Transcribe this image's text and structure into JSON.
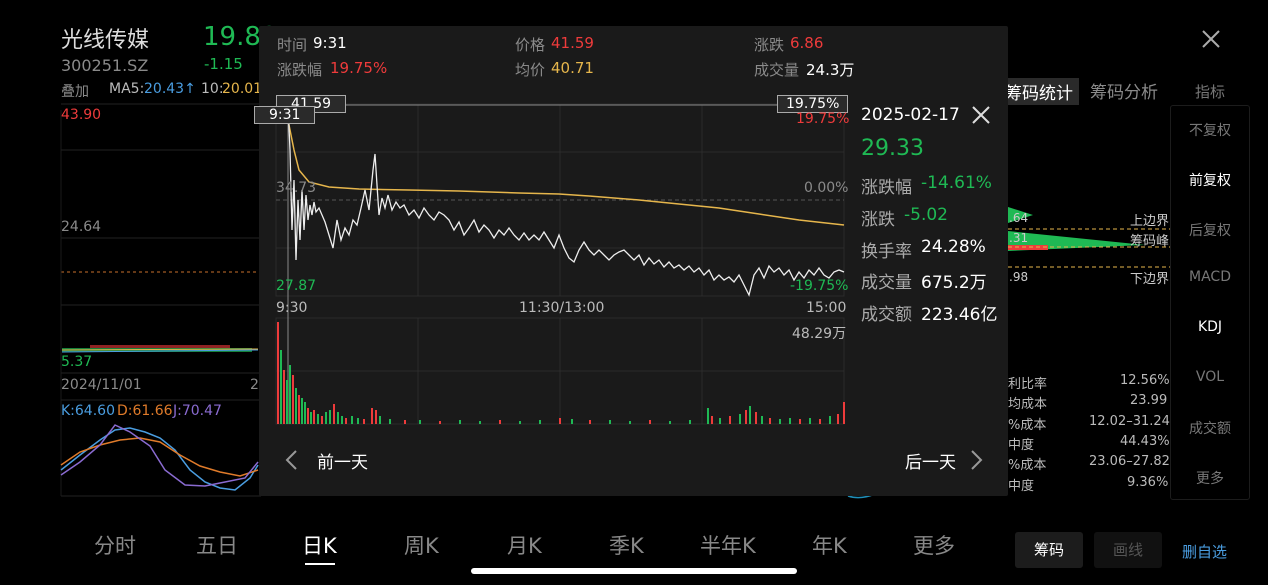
{
  "stock": {
    "name": "光线传媒",
    "code": "300251.SZ",
    "price": "19.80",
    "change": "-1.15",
    "overlay_label": "叠加"
  },
  "ma": {
    "ma5_label": "MA5:",
    "ma5_value": "20.43↑",
    "ma10_label": "10:",
    "ma10_value": "20.01"
  },
  "main_chart": {
    "high_label": "43.90",
    "mid_label": "24.64",
    "low_label": "5.37",
    "date_label": "2024/11/01",
    "date_label2": "2"
  },
  "kdj": {
    "k": "K:64.60",
    "d": "D:61.66",
    "j": "J:70.47"
  },
  "close_icon": "×",
  "right_panel": {
    "tab1": "筹码统计",
    "tab2": "筹码分析",
    "lbl_upper": "上边界",
    "lbl_peak": "筹码峰",
    "lbl_lower": "下边界",
    "val_upper": ".64",
    "val_peak": ".31",
    "val_lower": ".98",
    "stats": [
      {
        "label": "利比率",
        "value": "12.56%"
      },
      {
        "label": "均成本",
        "value": "23.99"
      },
      {
        "label": "%成本",
        "value": "12.02–31.24"
      },
      {
        "label": "中度",
        "value": "44.43%"
      },
      {
        "label": "%成本",
        "value": "23.06–27.82"
      },
      {
        "label": "中度",
        "value": "9.36%"
      }
    ]
  },
  "side_menu": [
    "指标",
    "不复权",
    "前复权",
    "后复权",
    "MACD",
    "KDJ",
    "VOL",
    "成交额",
    "更多"
  ],
  "bottom_tabs": [
    "分时",
    "五日",
    "日K",
    "周K",
    "月K",
    "季K",
    "半年K",
    "年K",
    "更多"
  ],
  "bottom_right": {
    "chip": "筹码",
    "draw": "画线",
    "delete": "删自选"
  },
  "overlay": {
    "time_label": "时间",
    "time_value": "9:31",
    "price_label": "价格",
    "price_value": "41.59",
    "change_label": "涨跌",
    "change_value": "6.86",
    "pct_label": "涨跌幅",
    "pct_value": "19.75%",
    "avg_label": "均价",
    "avg_value": "40.71",
    "vol_label": "成交量",
    "vol_value": "24.3万",
    "axis_top_left": "41.59",
    "axis_top_right": "19.75%",
    "axis_top_right2": "19.75%",
    "axis_mid_left": "34.73",
    "axis_mid_right": "0.00%",
    "axis_bot_left": "27.87",
    "axis_bot_right": "-19.75%",
    "cursor_time": "9:31",
    "x_start": "9:30",
    "x_mid": "11:30/13:00",
    "x_end": "15:00",
    "vol_max": "48.29万",
    "prev_day": "前一天",
    "next_day": "后一天"
  },
  "info": {
    "date": "2025-02-17",
    "price": "29.33",
    "pct_label": "涨跌幅",
    "pct_value": "-14.61%",
    "chg_label": "涨跌",
    "chg_value": "-5.02",
    "turn_label": "换手率",
    "turn_value": "24.28%",
    "vol_label": "成交量",
    "vol_value": "675.2万",
    "amt_label": "成交额",
    "amt_value": "223.46亿"
  },
  "chart_data": {
    "type": "line",
    "x": [
      "9:30",
      "11:30/13:00",
      "15:00"
    ],
    "ylim": [
      27.87,
      41.59
    ],
    "reference_price": 34.73,
    "series": [],
    "volume_max": "48.29万"
  },
  "colors": {
    "up": "#ee3b3b",
    "down": "#1fb954",
    "avg": "#e6b64c",
    "price": "#ffffff",
    "bg": "#000000",
    "panel": "#1a1a1a"
  }
}
